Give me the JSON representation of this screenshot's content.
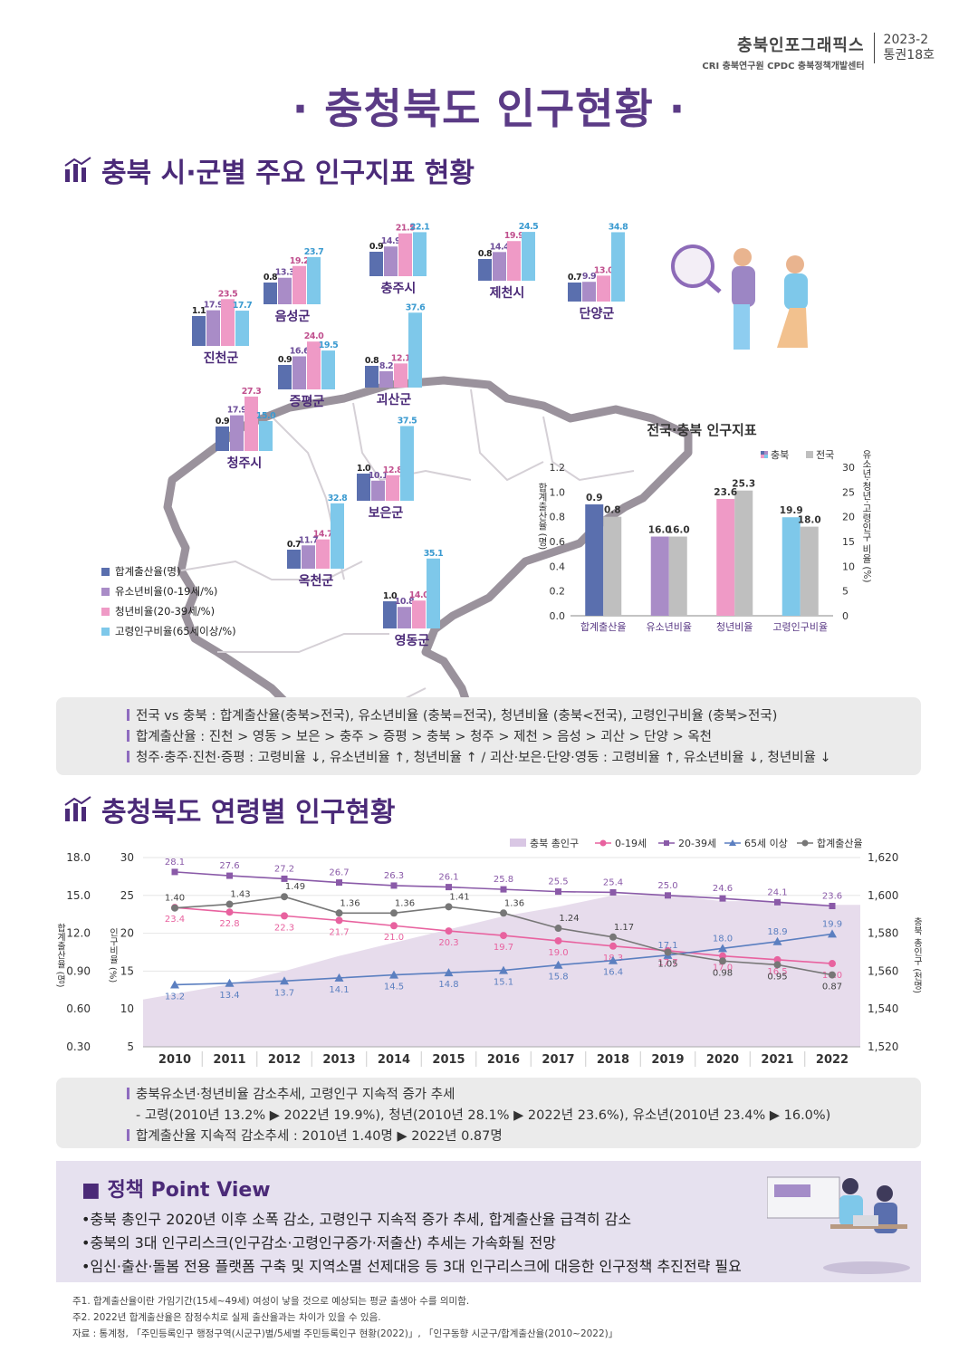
{
  "header": {
    "brand": "충북인포그래픽스",
    "orgs": "CRI 충북연구원 CPDC 충북정책개발센터",
    "issue_year": "2023-2",
    "issue_no": "통권18호"
  },
  "title": "· 충청북도 인구현황 ·",
  "section1": {
    "title": "충북 시·군별 주요 인구지표 현황",
    "legend": [
      "합계출산율(명)",
      "유소년비율(0-19세/%)",
      "청년비율(20-39세/%)",
      "고령인구비율(65세이상/%)"
    ],
    "colors": [
      "#5a6fae",
      "#a98cc7",
      "#ef9ac6",
      "#7ec8ea"
    ],
    "regions": [
      {
        "name": "충주시",
        "values": [
          0.9,
          14.9,
          21.5,
          22.1
        ]
      },
      {
        "name": "제천시",
        "values": [
          0.8,
          14.4,
          19.9,
          24.5
        ]
      },
      {
        "name": "단양군",
        "values": [
          0.7,
          9.9,
          13.0,
          34.8
        ]
      },
      {
        "name": "음성군",
        "values": [
          0.8,
          13.3,
          19.2,
          23.7
        ]
      },
      {
        "name": "진천군",
        "values": [
          1.1,
          17.9,
          23.5,
          17.7
        ]
      },
      {
        "name": "증평군",
        "values": [
          0.9,
          16.6,
          24.0,
          19.5
        ]
      },
      {
        "name": "괴산군",
        "values": [
          0.8,
          8.2,
          12.1,
          37.6
        ]
      },
      {
        "name": "청주시",
        "values": [
          0.9,
          17.9,
          27.3,
          15.0
        ]
      },
      {
        "name": "보은군",
        "values": [
          1.0,
          10.1,
          12.8,
          37.5
        ]
      },
      {
        "name": "옥천군",
        "values": [
          0.7,
          11.7,
          14.7,
          32.8
        ]
      },
      {
        "name": "영동군",
        "values": [
          1.0,
          10.8,
          14.0,
          35.1
        ]
      }
    ]
  },
  "chart_data": [
    {
      "type": "bar",
      "title": "전국·충북 인구지표",
      "categories": [
        "합계출산율",
        "유소년비율",
        "청년비율",
        "고령인구비율"
      ],
      "series": [
        {
          "name": "충북",
          "values": [
            0.9,
            16.0,
            23.6,
            19.9
          ],
          "colors": [
            "#5a6fae",
            "#a98cc7",
            "#ef9ac6",
            "#7ec8ea"
          ]
        },
        {
          "name": "전국",
          "values": [
            0.8,
            16.0,
            25.3,
            18.0
          ],
          "color": "#bfbfbf"
        }
      ],
      "ylabel": "합계출산율 (명)",
      "y2label": "유소년·청년·고령인구 비율 (%)",
      "ylim": [
        0,
        1.2
      ],
      "y2lim": [
        0,
        30
      ],
      "yticks": [
        "0.0",
        "0.2",
        "0.4",
        "0.6",
        "0.8",
        "1.0",
        "1.2"
      ],
      "y2ticks": [
        "0",
        "5",
        "10",
        "15",
        "20",
        "25",
        "30"
      ],
      "legend": "top-right"
    },
    {
      "type": "line",
      "x": [
        "2010",
        "2011",
        "2012",
        "2013",
        "2014",
        "2015",
        "2016",
        "2017",
        "2018",
        "2019",
        "2020",
        "2021",
        "2022"
      ],
      "series": [
        {
          "name": "충북 총인구",
          "type": "area",
          "axis": "right",
          "color": "#e7dcec",
          "values": [
            1545,
            1553,
            1560,
            1568,
            1575,
            1582,
            1589,
            1594,
            1600,
            1600,
            1597,
            1597,
            1595
          ]
        },
        {
          "name": "0-19세",
          "axis": "pct",
          "color": "#e8629f",
          "values": [
            23.4,
            22.8,
            22.3,
            21.7,
            21.0,
            20.3,
            19.7,
            19.0,
            18.3,
            17.7,
            17.0,
            16.5,
            16.0
          ],
          "labels": [
            "23.4",
            "22.8",
            "22.3",
            "21.7",
            "21.0",
            "20.3",
            "19.7",
            "19.0",
            "18.3",
            "17.7",
            "17.0",
            "16.5",
            "16.0"
          ]
        },
        {
          "name": "20-39세",
          "axis": "pct",
          "color": "#8a5aa8",
          "values": [
            28.1,
            27.6,
            27.2,
            26.7,
            26.3,
            26.1,
            25.8,
            25.5,
            25.4,
            25.0,
            24.6,
            24.1,
            23.6
          ],
          "labels": [
            "28.1",
            "27.6",
            "27.2",
            "26.7",
            "26.3",
            "26.1",
            "25.8",
            "25.5",
            "25.4",
            "25.0",
            "24.6",
            "24.1",
            "23.6"
          ]
        },
        {
          "name": "65세 이상",
          "axis": "pct",
          "color": "#5b7fc0",
          "values": [
            13.2,
            13.4,
            13.7,
            14.1,
            14.5,
            14.8,
            15.1,
            15.8,
            16.4,
            17.1,
            18.0,
            18.9,
            19.9
          ],
          "labels": [
            "13.2",
            "13.4",
            "13.7",
            "14.1",
            "14.5",
            "14.8",
            "15.1",
            "15.8",
            "16.4",
            "17.1",
            "18.0",
            "18.9",
            "19.9"
          ]
        },
        {
          "name": "합계출산율",
          "axis": "tfr",
          "color": "#777777",
          "values": [
            1.4,
            1.43,
            1.49,
            1.36,
            1.36,
            1.41,
            1.36,
            1.24,
            1.17,
            1.05,
            0.98,
            0.95,
            0.87
          ],
          "labels": [
            "1.40",
            "1.43",
            "1.49",
            "1.36",
            "1.36",
            "1.41",
            "1.36",
            "1.24",
            "1.17",
            "1.05",
            "0.98",
            "0.95",
            "0.87"
          ]
        }
      ],
      "ylabel_tfr": "합계출산율 (명)",
      "ylabel_pct": "인구비율 (%)",
      "ylabel_right": "충북 총인구 (천명)",
      "yticks_tfr": [
        "0.30",
        "0.60",
        "0.90",
        "12.0",
        "15.0",
        "18.0"
      ],
      "yticks_pct": [
        "5",
        "10",
        "15",
        "20",
        "25",
        "30"
      ],
      "yticks_right": [
        "1,520",
        "1,540",
        "1,560",
        "1,580",
        "1,600",
        "1,620"
      ],
      "ylim_pct": [
        5,
        30
      ],
      "ylim_right": [
        1520,
        1620
      ],
      "legend": "top-right"
    }
  ],
  "notes1": [
    "전국 vs 충북 : 합계출산율(충북>전국), 유소년비율 (충북=전국), 청년비율 (충북<전국), 고령인구비율 (충북>전국)",
    "합계출산율 : 진천 > 영동 > 보은 > 충주 > 증평 > 충북 > 청주 > 제천 > 음성 > 괴산 > 단양 > 옥천",
    "청주·충주·진천·증평 : 고령비율 ↓, 유소년비율 ↑, 청년비율 ↑ / 괴산·보은·단양·영동 : 고령비율 ↑, 유소년비율 ↓, 청년비율 ↓"
  ],
  "section2": {
    "title": "충청북도 연령별 인구현황"
  },
  "notes2": [
    "충북유소년·청년비율 감소추세, 고령인구 지속적 증가 추세",
    "- 고령(2010년 13.2% ▶ 2022년 19.9%), 청년(2010년 28.1% ▶ 2022년 23.6%), 유소년(2010년 23.4% ▶ 16.0%)",
    "합계출산율 지속적 감소추세 : 2010년 1.40명 ▶ 2022년 0.87명"
  ],
  "policy": {
    "title": "■ 정책 Point View",
    "items": [
      "•충북 총인구 2020년 이후 소폭 감소, 고령인구 지속적 증가 추세, 합계출산율 급격히 감소",
      "•충북의 3대 인구리스크(인구감소·고령인구증가·저출산) 추세는 가속화될 전망",
      "•임신·출산·돌봄 전용 플랫폼 구축 및 지역소멸 선제대응 등 3대 인구리스크에 대응한 인구정책 추진전략 필요"
    ]
  },
  "footnotes": [
    "주1. 합계출산율이란 가임기간(15세~49세) 여성이 낳을 것으로 예상되는 평균 출생아 수를 의미함.",
    "주2. 2022년 합계출산율은 잠정수치로 실제 출산율과는 차이가 있을 수 있음.",
    "자료 : 통계청, 「주민등록인구 행정구역(시군구)별/5세별 주민등록인구 현황(2022)」, 「인구동향 시군구/합계출산율(2010~2022)」"
  ]
}
